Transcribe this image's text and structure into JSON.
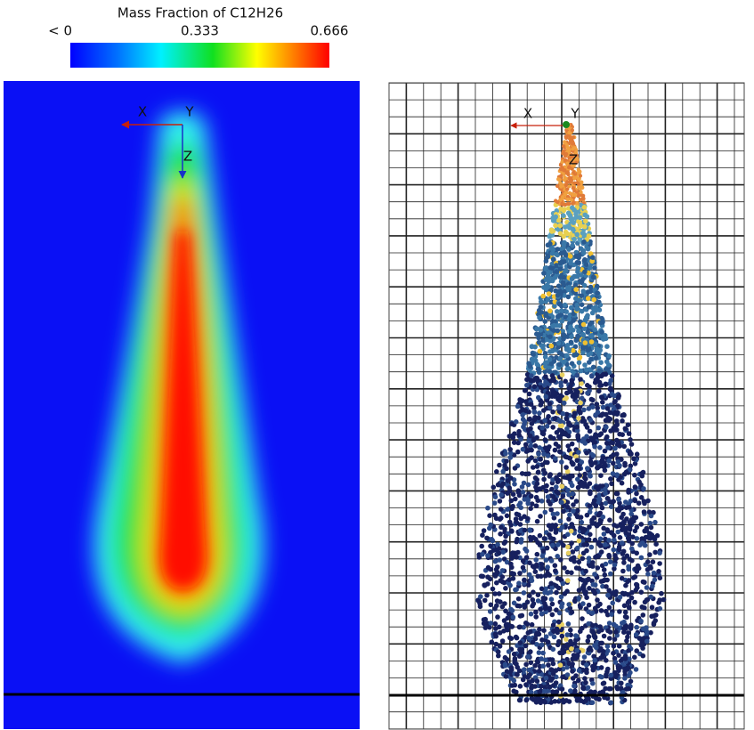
{
  "colorbar": {
    "title": "Mass Fraction of C12H26",
    "lim": [
      0,
      0.666
    ],
    "ticks": [
      {
        "value": 0,
        "label": "< 0"
      },
      0.333,
      0.666
    ]
  },
  "left_view": {
    "axes": {
      "x": "X",
      "y": "Y",
      "z": "Z"
    }
  },
  "right_view": {
    "axes": {
      "x": "X",
      "y": "Y",
      "z": "Z"
    }
  }
}
